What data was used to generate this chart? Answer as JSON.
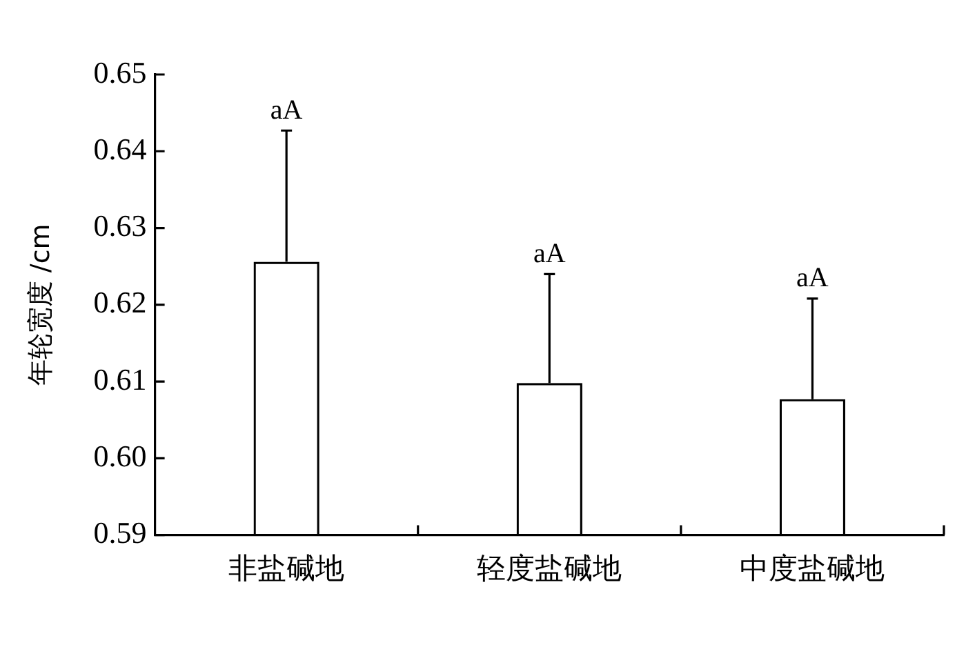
{
  "chart_data": {
    "type": "bar",
    "ylabel": "年轮宽度 /cm",
    "categories": [
      "非盐碱地",
      "轻度盐碱地",
      "中度盐碱地"
    ],
    "values": [
      0.6256,
      0.6098,
      0.6077
    ],
    "color": "#000000",
    "errors": [
      [
        0.6256,
        0.6427
      ],
      [
        0.6098,
        0.624
      ],
      [
        0.6077,
        0.6208
      ]
    ],
    "ylim": [
      0.59,
      0.65
    ],
    "yticks": [
      {
        "value": 0.59,
        "label": "0.59"
      },
      {
        "value": 0.6,
        "label": "0.60"
      },
      0.61,
      0.62,
      0.63,
      0.64,
      0.65
    ],
    "grid": false,
    "annotations": [
      {
        "text": "aA",
        "x": "非盐碱地",
        "y": 0.6427
      },
      {
        "text": "aA",
        "x": "轻度盐碱地",
        "y": 0.624
      },
      {
        "text": "aA",
        "x": "中度盐碱地",
        "y": 0.6208
      }
    ]
  }
}
